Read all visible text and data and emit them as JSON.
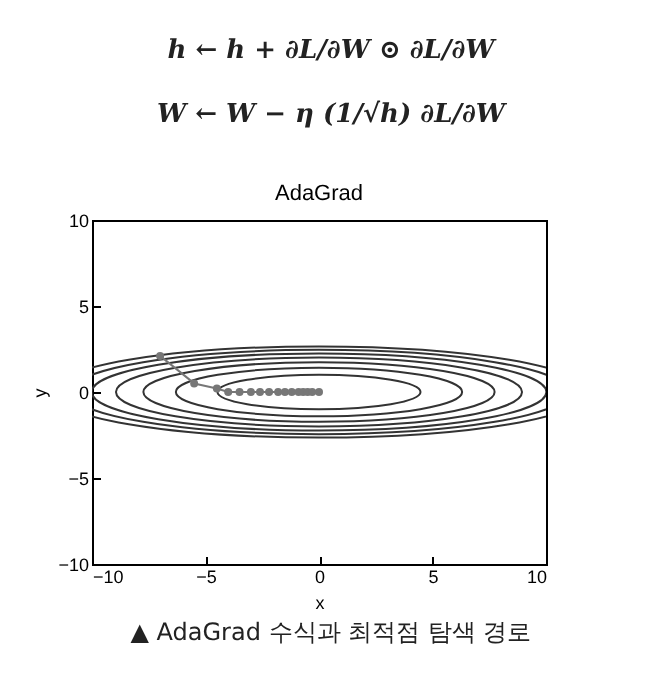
{
  "chart_data": {
    "type": "line",
    "title": "AdaGrad",
    "xlabel": "x",
    "ylabel": "y",
    "xlim": [
      -10,
      10
    ],
    "ylim": [
      -10,
      10
    ],
    "xticks": [
      -10,
      -5,
      0,
      5,
      10
    ],
    "yticks": [
      -10,
      -5,
      0,
      5,
      10
    ],
    "grid": false,
    "annotations": [
      "h ← h + ∂L/∂W ⊙ ∂L/∂W",
      "W ← W − η (1/√h) ∂L/∂W",
      "▲ AdaGrad 수식과 최적점 탐색 경로"
    ],
    "series": [
      {
        "color": "#777777",
        "marker": "circle",
        "x": [
          -7,
          -5.5,
          -4.5,
          -4,
          -3.5,
          -3,
          -2.6,
          -2.2,
          -1.8,
          -1.5,
          -1.2,
          -0.9,
          -0.7,
          -0.5,
          -0.3,
          0
        ],
        "values": [
          2.1,
          0.5,
          0.2,
          0,
          0,
          0,
          0,
          0,
          0,
          0,
          0,
          0,
          0,
          0,
          0,
          0
        ]
      }
    ]
  }
}
